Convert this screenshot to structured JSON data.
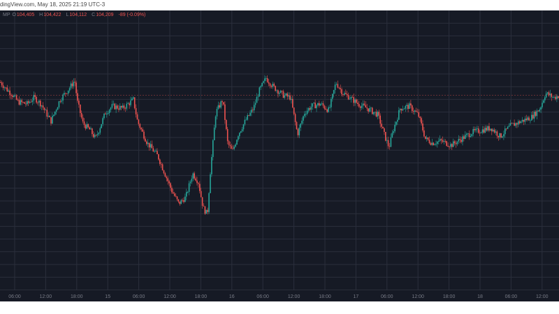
{
  "header": {
    "caption": "dingView.com, May 18, 2025 21:19 UTC-3"
  },
  "ohlc": {
    "symbol": "MP",
    "open": "104,405",
    "high": "104,422",
    "low": "104,112",
    "close": "104,209",
    "change": "-89 (-0.09%)",
    "labels": {
      "open": "O",
      "high": "H",
      "low": "L",
      "close": "C"
    }
  },
  "colors": {
    "background": "#161a25",
    "grid": "#2b2f3c",
    "up": "#26a69a",
    "down": "#ef5350",
    "axis_text": "#787b86"
  },
  "chart_data": {
    "type": "candlestick",
    "x_tick_labels": [
      "06:00",
      "12:00",
      "18:00",
      "15",
      "06:00",
      "12:00",
      "18:00",
      "16",
      "06:00",
      "12:00",
      "18:00",
      "17",
      "06:00",
      "12:00",
      "18:00",
      "18",
      "06:00",
      "12:00"
    ],
    "price_path": [
      [
        0,
        104400
      ],
      [
        8,
        104250
      ],
      [
        15,
        104150
      ],
      [
        25,
        103950
      ],
      [
        38,
        103900
      ],
      [
        48,
        104050
      ],
      [
        58,
        103900
      ],
      [
        72,
        103500
      ],
      [
        85,
        104000
      ],
      [
        100,
        104300
      ],
      [
        106,
        104450
      ],
      [
        110,
        103950
      ],
      [
        118,
        103450
      ],
      [
        128,
        103300
      ],
      [
        136,
        103100
      ],
      [
        150,
        103700
      ],
      [
        160,
        103850
      ],
      [
        175,
        103800
      ],
      [
        190,
        104000
      ],
      [
        196,
        103500
      ],
      [
        210,
        103000
      ],
      [
        225,
        102700
      ],
      [
        235,
        102300
      ],
      [
        245,
        101900
      ],
      [
        255,
        101600
      ],
      [
        265,
        101750
      ],
      [
        275,
        102300
      ],
      [
        283,
        102100
      ],
      [
        290,
        101500
      ],
      [
        296,
        101350
      ],
      [
        300,
        102300
      ],
      [
        308,
        103700
      ],
      [
        318,
        104000
      ],
      [
        325,
        103000
      ],
      [
        332,
        102800
      ],
      [
        340,
        103200
      ],
      [
        350,
        103500
      ],
      [
        362,
        103800
      ],
      [
        370,
        104200
      ],
      [
        380,
        104500
      ],
      [
        390,
        104300
      ],
      [
        405,
        104100
      ],
      [
        415,
        104050
      ],
      [
        425,
        103200
      ],
      [
        435,
        103700
      ],
      [
        445,
        103850
      ],
      [
        458,
        103900
      ],
      [
        470,
        103750
      ],
      [
        480,
        104400
      ],
      [
        490,
        104150
      ],
      [
        500,
        104050
      ],
      [
        512,
        103900
      ],
      [
        525,
        103800
      ],
      [
        540,
        103650
      ],
      [
        550,
        103150
      ],
      [
        556,
        102900
      ],
      [
        562,
        103300
      ],
      [
        572,
        103800
      ],
      [
        585,
        103850
      ],
      [
        598,
        103650
      ],
      [
        608,
        103100
      ],
      [
        618,
        103000
      ],
      [
        630,
        103050
      ],
      [
        645,
        102950
      ],
      [
        660,
        103100
      ],
      [
        675,
        103250
      ],
      [
        690,
        103300
      ],
      [
        702,
        103350
      ],
      [
        715,
        103150
      ],
      [
        730,
        103400
      ],
      [
        745,
        103500
      ],
      [
        760,
        103600
      ],
      [
        772,
        103800
      ],
      [
        780,
        104150
      ],
      [
        792,
        104050
      ],
      [
        800,
        104100
      ]
    ],
    "grid": true
  }
}
